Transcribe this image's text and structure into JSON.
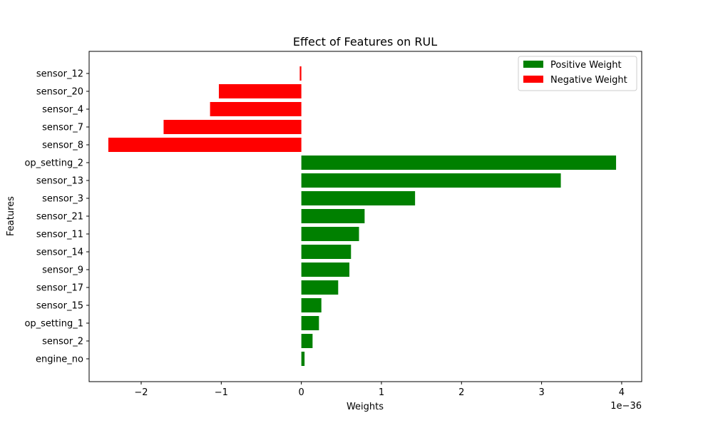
{
  "chart_data": {
    "type": "bar",
    "orientation": "horizontal",
    "title": "Effect of Features on RUL",
    "xlabel": "Weights",
    "ylabel": "Features",
    "x_offset_text": "1e−36",
    "xlim": [
      -2.65,
      4.25
    ],
    "xticks": [
      -2,
      -1,
      0,
      1,
      2,
      3,
      4
    ],
    "xtick_labels": [
      "−2",
      "−1",
      "0",
      "1",
      "2",
      "3",
      "4"
    ],
    "categories": [
      "sensor_12",
      "sensor_20",
      "sensor_4",
      "sensor_7",
      "sensor_8",
      "op_setting_2",
      "sensor_13",
      "sensor_3",
      "sensor_21",
      "sensor_11",
      "sensor_14",
      "sensor_9",
      "sensor_17",
      "sensor_15",
      "op_setting_1",
      "sensor_2",
      "engine_no"
    ],
    "values": [
      -0.02,
      -1.03,
      -1.14,
      -1.72,
      -2.41,
      3.93,
      3.24,
      1.42,
      0.79,
      0.72,
      0.62,
      0.6,
      0.46,
      0.25,
      0.22,
      0.14,
      0.04
    ],
    "legend": [
      {
        "label": "Positive Weight",
        "color": "#008000"
      },
      {
        "label": "Negative Weight",
        "color": "#ff0000"
      }
    ],
    "legend_position": "top-right",
    "colors": {
      "positive": "#008000",
      "negative": "#ff0000"
    },
    "grid": false
  }
}
